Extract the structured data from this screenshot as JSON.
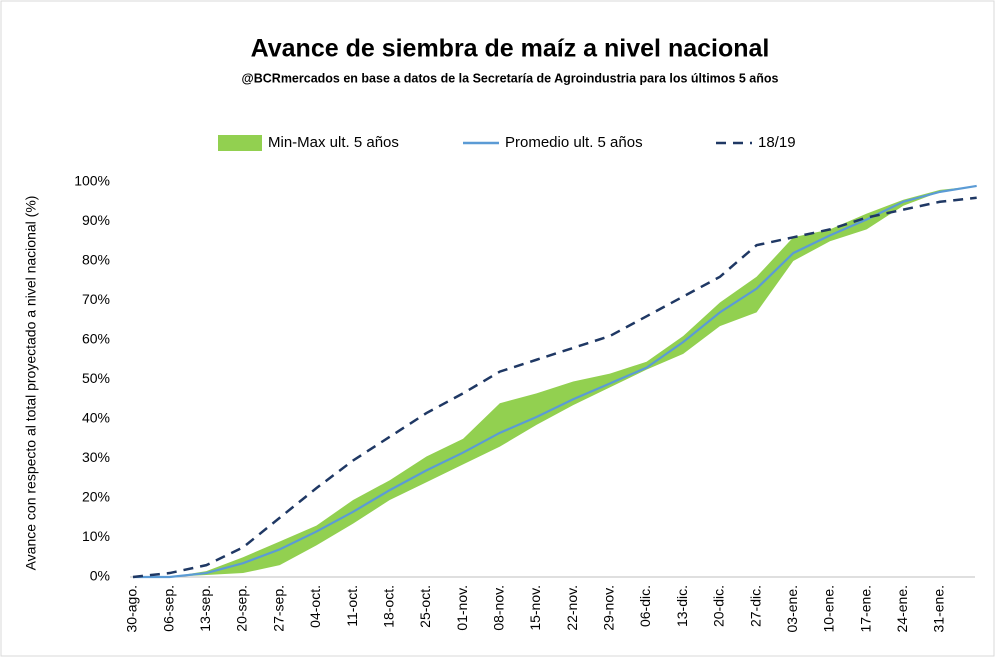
{
  "chart_data": {
    "type": "line",
    "title": "Avance de siembra de maíz a nivel nacional",
    "subtitle": "@BCRmercados en base a datos de la Secretaría de Agroindustria para los últimos 5 años",
    "y_axis_label": "Avance con respecto al total proyectado a nivel nacional (%)",
    "categories": [
      "30-ago.",
      "06-sep.",
      "13-sep.",
      "20-sep.",
      "27-sep.",
      "04-oct.",
      "11-oct.",
      "18-oct.",
      "25-oct.",
      "01-nov.",
      "08-nov.",
      "15-nov.",
      "22-nov.",
      "29-nov.",
      "06-dic.",
      "13-dic.",
      "20-dic.",
      "27-dic.",
      "03-ene.",
      "10-ene.",
      "17-ene.",
      "24-ene.",
      "31-ene.",
      null
    ],
    "series": [
      {
        "name": "Min-Max ult. 5 años",
        "color": "#92d050",
        "style": "band",
        "min": [
          0,
          0,
          0.5,
          1,
          3,
          8,
          13.5,
          19.5,
          24,
          28.5,
          33,
          38.5,
          43.5,
          48,
          52.5,
          56.5,
          63.5,
          67,
          80,
          85,
          88,
          94,
          97.5,
          99
        ],
        "max": [
          0,
          0,
          1.5,
          5,
          9,
          13,
          19.5,
          24.5,
          30.5,
          35,
          44,
          46.5,
          49.5,
          51.5,
          54.5,
          61,
          69.5,
          76,
          86,
          88,
          92,
          95.5,
          98,
          99
        ]
      },
      {
        "name": "Promedio ult. 5 años",
        "color": "#5b9bd5",
        "style": "solid",
        "values": [
          0,
          0,
          1,
          3.5,
          7,
          11.5,
          16.5,
          22,
          27,
          31.5,
          36.5,
          40.5,
          45,
          49,
          53,
          59.5,
          67,
          73,
          82,
          86.5,
          90.5,
          95,
          97.5,
          99
        ]
      },
      {
        "name": "18/19",
        "color": "#1f3864",
        "style": "dashed",
        "values": [
          0,
          1,
          3,
          7.5,
          15,
          22.5,
          29.5,
          35.5,
          41.5,
          46.5,
          52,
          55,
          58,
          61,
          66,
          71,
          76,
          84,
          86,
          88,
          91,
          93,
          95,
          96
        ]
      }
    ],
    "ylim": [
      0,
      100
    ],
    "yticks": [
      {
        "value": 0,
        "label": "0%"
      },
      {
        "value": 10,
        "label": "10%"
      },
      {
        "value": 20,
        "label": "20%"
      },
      {
        "value": 30,
        "label": "30%"
      },
      {
        "value": 40,
        "label": "40%"
      },
      {
        "value": 50,
        "label": "50%"
      },
      {
        "value": 60,
        "label": "60%"
      },
      {
        "value": 70,
        "label": "70%"
      },
      {
        "value": 80,
        "label": "80%"
      },
      {
        "value": 90,
        "label": "90%"
      },
      {
        "value": 100,
        "label": "100%"
      }
    ],
    "grid": false
  }
}
